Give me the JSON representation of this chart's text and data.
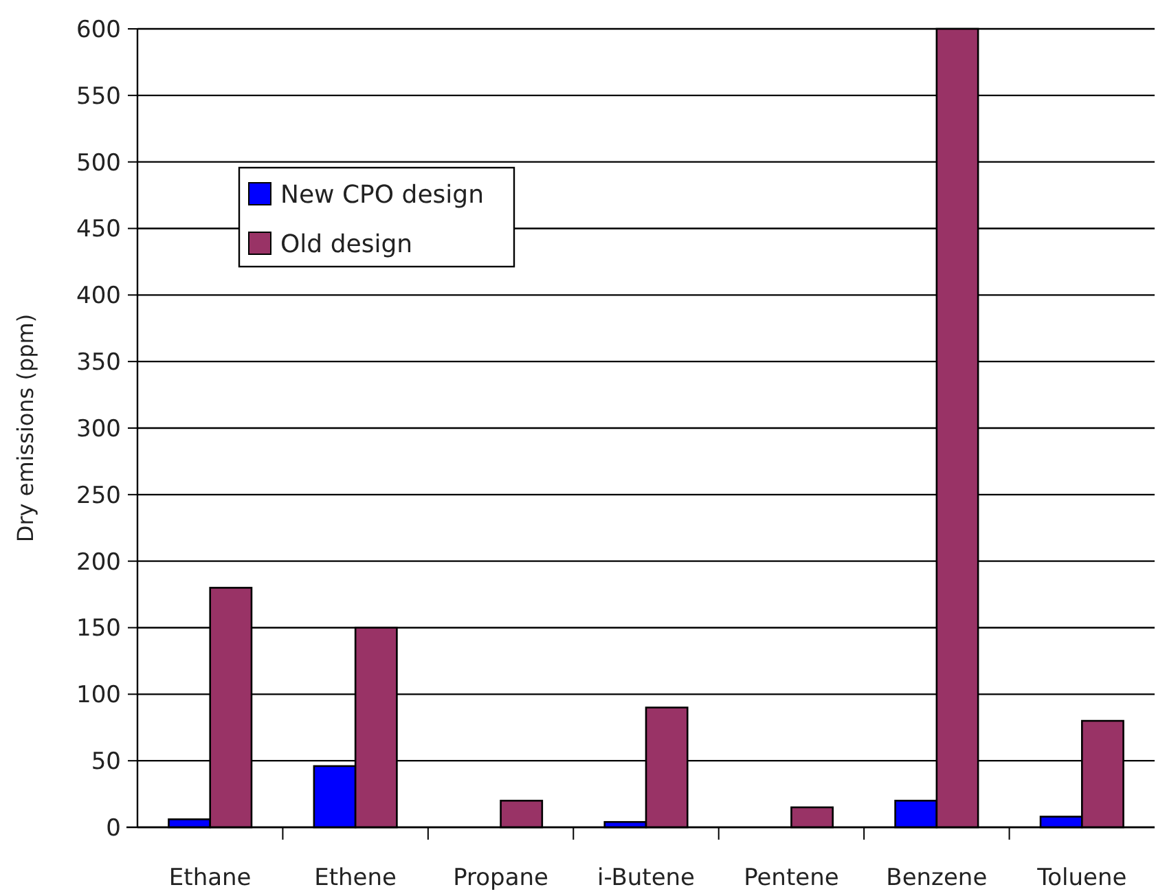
{
  "chart_data": {
    "type": "bar",
    "ylabel": "Dry emissions (ppm)",
    "categories": [
      "Ethane",
      "Ethene",
      "Propane",
      "i-Butene",
      "Pentene",
      "Benzene",
      "Toluene"
    ],
    "series": [
      {
        "name": "New CPO design",
        "color": "#0000ff",
        "values": [
          6,
          46,
          0,
          4,
          0,
          20,
          8
        ]
      },
      {
        "name": "Old design",
        "color": "#993366",
        "values": [
          180,
          150,
          20,
          90,
          15,
          600,
          80
        ]
      }
    ],
    "ylim": [
      0,
      600
    ],
    "yticks": [
      0,
      50,
      100,
      150,
      200,
      250,
      300,
      350,
      400,
      450,
      500,
      550,
      600
    ],
    "grid": "y",
    "legend": "top left"
  }
}
